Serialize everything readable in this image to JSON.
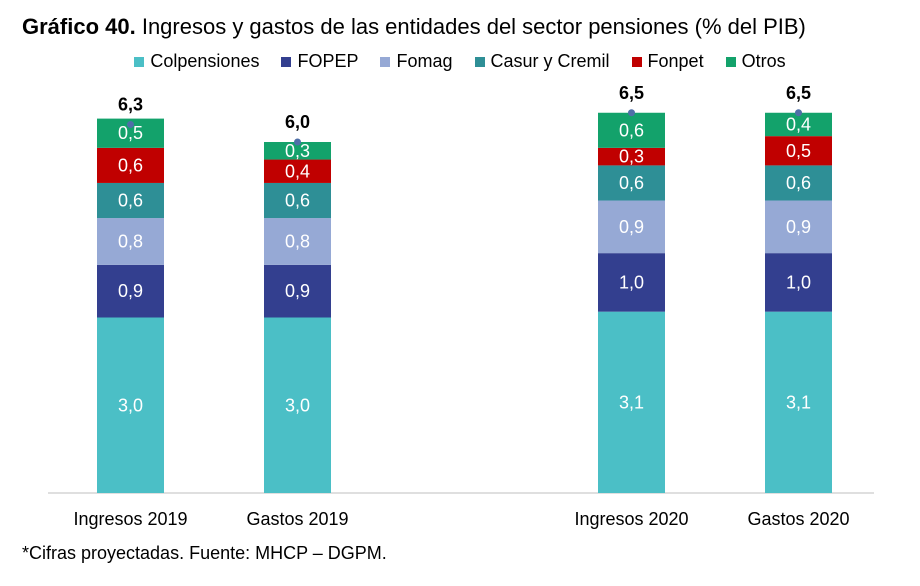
{
  "title": {
    "prefix": "Gráfico 40.",
    "text": " Ingresos y gastos de las entidades del sector pensiones (% del PIB)"
  },
  "footnote": "*Cifras proyectadas. Fuente: MHCP – DGPM.",
  "chart_data": {
    "type": "bar",
    "stacked": true,
    "categories": [
      "Ingresos 2019",
      "Gastos 2019",
      "Ingresos 2020",
      "Gastos 2020"
    ],
    "series": [
      {
        "name": "Colpensiones",
        "color": "#4bbfc6",
        "values": [
          3.0,
          3.0,
          3.1,
          3.1
        ],
        "labels": [
          "3,0",
          "3,0",
          "3,1",
          "3,1"
        ]
      },
      {
        "name": "FOPEP",
        "color": "#333f8f",
        "values": [
          0.9,
          0.9,
          1.0,
          1.0
        ],
        "labels": [
          "0,9",
          "0,9",
          "1,0",
          "1,0"
        ]
      },
      {
        "name": "Fomag",
        "color": "#96a9d5",
        "values": [
          0.8,
          0.8,
          0.9,
          0.9
        ],
        "labels": [
          "0,8",
          "0,8",
          "0,9",
          "0,9"
        ]
      },
      {
        "name": "Casur y Cremil",
        "color": "#2e8f96",
        "values": [
          0.6,
          0.6,
          0.6,
          0.6
        ],
        "labels": [
          "0,6",
          "0,6",
          "0,6",
          "0,6"
        ]
      },
      {
        "name": "Fonpet",
        "color": "#c00000",
        "values": [
          0.6,
          0.4,
          0.3,
          0.5
        ],
        "labels": [
          "0,6",
          "0,4",
          "0,3",
          "0,5"
        ]
      },
      {
        "name": "Otros",
        "color": "#13a26b",
        "values": [
          0.5,
          0.3,
          0.6,
          0.4
        ],
        "labels": [
          "0,5",
          "0,3",
          "0,6",
          "0,4"
        ]
      }
    ],
    "totals": [
      6.3,
      6.0,
      6.5,
      6.5
    ],
    "total_labels": [
      "6,3",
      "6,0",
      "6,5",
      "6,5"
    ],
    "total_marker_color": "#4f6fa8",
    "ylim": [
      0,
      6.9
    ],
    "grid": false,
    "legend_position": "top"
  }
}
